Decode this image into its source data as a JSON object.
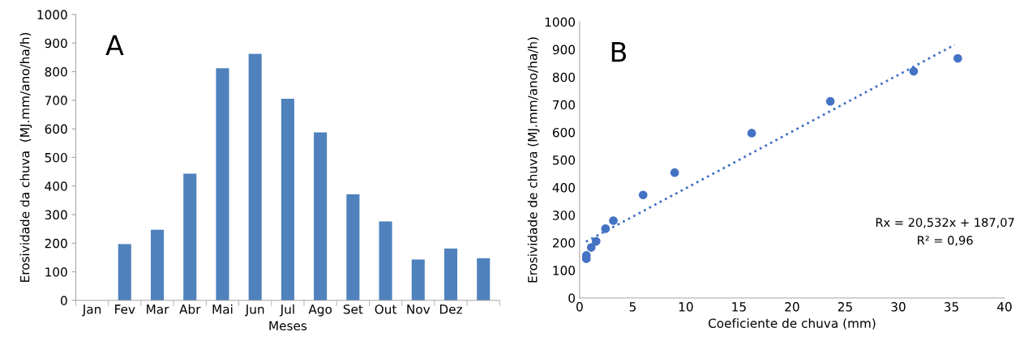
{
  "chart_data": [
    {
      "type": "bar",
      "xlabel": "Meses",
      "ylabel": "Erosividade da chuva  (MJ.mm/ano/ha/h)",
      "annotations": [
        "A"
      ],
      "categories": [
        "Jan",
        "Fev",
        "Mar",
        "Abr",
        "Mai",
        "Jun",
        "Jul",
        "Ago",
        "Set",
        "Out",
        "Nov",
        "Dez",
        null
      ],
      "values": [
        null,
        197,
        247,
        443,
        812,
        862,
        705,
        588,
        371,
        276,
        143,
        181,
        147
      ],
      "color": "#4f81bd",
      "ylim": [
        0,
        1000
      ],
      "yticks": [
        0,
        100,
        200,
        300,
        400,
        500,
        600,
        700,
        800,
        900,
        1000
      ],
      "grid": false,
      "legend": false
    },
    {
      "type": "scatter",
      "xlabel": "Coeficiente de chuva (mm)",
      "ylabel": "Erosividade de chuva (MJ.mm/ano/ha/h)",
      "annotations": [
        "B",
        "Rx = 20,532x + 187,07",
        "R² = 0,96"
      ],
      "series": [
        {
          "type": "scatter",
          "color": "#4472c4",
          "marker": "circle",
          "x": [
            0.64,
            0.64,
            1.1,
            1.56,
            2.44,
            3.18,
            5.98,
            8.95,
            16.2,
            23.6,
            31.45,
            35.6
          ],
          "values": [
            142,
            154,
            183,
            205,
            251,
            280,
            373,
            454,
            597,
            712,
            821,
            868
          ]
        },
        {
          "type": "line",
          "color": "#4472c4",
          "line_style": "dotted",
          "x": [
            0.6,
            35.3
          ],
          "values": [
            204,
            917
          ]
        }
      ],
      "xlim": [
        0,
        40
      ],
      "xticks": [
        0,
        5,
        10,
        15,
        20,
        25,
        30,
        35,
        40
      ],
      "ylim": [
        0,
        1000
      ],
      "yticks": [
        0,
        100,
        200,
        300,
        400,
        500,
        600,
        700,
        800,
        900,
        1000
      ],
      "grid": false,
      "legend": false
    }
  ]
}
